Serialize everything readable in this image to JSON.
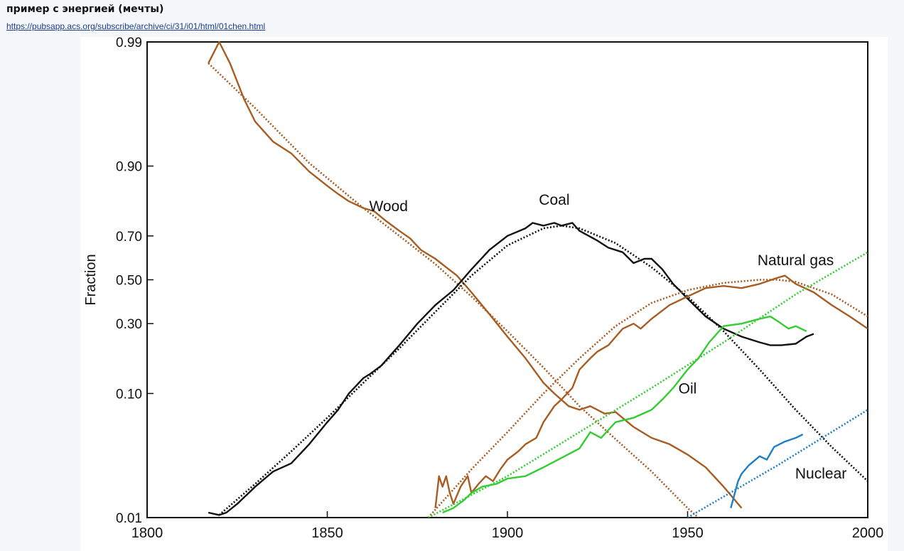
{
  "page": {
    "title": "пример с энергией (мечты)",
    "link": "https://pubsapp.acs.org/subscribe/archive/ci/31/i01/html/01chen.html"
  },
  "chart_data": {
    "type": "line",
    "title": "",
    "xlabel": "",
    "ylabel": "Fraction",
    "y_scale": "logit",
    "xlim": [
      1800,
      2000
    ],
    "ylim": [
      0.01,
      0.99
    ],
    "x_ticks": [
      1800,
      1850,
      1900,
      1950,
      2000
    ],
    "x_tick_labels": [
      "1800",
      "1850",
      "1900",
      "1950",
      "2000"
    ],
    "y_ticks": [
      0.01,
      0.1,
      0.3,
      0.5,
      0.7,
      0.9,
      0.99
    ],
    "y_tick_labels": [
      "0.01",
      "0.10",
      "0.30",
      "0.50",
      "0.70",
      "0.90",
      "0.99"
    ],
    "colors": {
      "Wood": "#a85c22",
      "Coal": "#111111",
      "Natural gas": "#a85c22",
      "Oil": "#33cc33",
      "Nuclear": "#1f7fc4"
    },
    "series": [
      {
        "name": "Wood",
        "actual": [
          [
            1817,
            0.985
          ],
          [
            1820,
            0.99
          ],
          [
            1823,
            0.985
          ],
          [
            1827,
            0.97
          ],
          [
            1830,
            0.955
          ],
          [
            1835,
            0.935
          ],
          [
            1840,
            0.92
          ],
          [
            1845,
            0.89
          ],
          [
            1850,
            0.86
          ],
          [
            1853,
            0.84
          ],
          [
            1856,
            0.82
          ],
          [
            1860,
            0.8
          ],
          [
            1863,
            0.79
          ],
          [
            1866,
            0.76
          ],
          [
            1870,
            0.72
          ],
          [
            1873,
            0.69
          ],
          [
            1876,
            0.64
          ],
          [
            1880,
            0.6
          ],
          [
            1883,
            0.56
          ],
          [
            1886,
            0.52
          ],
          [
            1890,
            0.44
          ],
          [
            1895,
            0.34
          ],
          [
            1900,
            0.25
          ],
          [
            1905,
            0.18
          ],
          [
            1910,
            0.12
          ],
          [
            1913,
            0.1
          ],
          [
            1917,
            0.08
          ],
          [
            1920,
            0.075
          ],
          [
            1923,
            0.08
          ],
          [
            1927,
            0.07
          ],
          [
            1930,
            0.072
          ],
          [
            1935,
            0.055
          ],
          [
            1940,
            0.045
          ],
          [
            1945,
            0.04
          ],
          [
            1950,
            0.033
          ],
          [
            1955,
            0.026
          ],
          [
            1960,
            0.018
          ],
          [
            1965,
            0.012
          ]
        ],
        "trend": [
          [
            1817,
            0.985
          ],
          [
            1830,
            0.965
          ],
          [
            1845,
            0.905
          ],
          [
            1860,
            0.8
          ],
          [
            1870,
            0.7
          ],
          [
            1880,
            0.575
          ],
          [
            1890,
            0.42
          ],
          [
            1900,
            0.27
          ],
          [
            1910,
            0.155
          ],
          [
            1920,
            0.08
          ],
          [
            1930,
            0.044
          ],
          [
            1940,
            0.024
          ],
          [
            1950,
            0.012
          ],
          [
            1953,
            0.01
          ]
        ]
      },
      {
        "name": "Coal",
        "actual": [
          [
            1817,
            0.011
          ],
          [
            1820,
            0.0105
          ],
          [
            1822,
            0.011
          ],
          [
            1825,
            0.013
          ],
          [
            1830,
            0.018
          ],
          [
            1835,
            0.024
          ],
          [
            1840,
            0.028
          ],
          [
            1845,
            0.04
          ],
          [
            1850,
            0.06
          ],
          [
            1853,
            0.075
          ],
          [
            1856,
            0.1
          ],
          [
            1860,
            0.13
          ],
          [
            1862,
            0.14
          ],
          [
            1865,
            0.16
          ],
          [
            1870,
            0.22
          ],
          [
            1875,
            0.3
          ],
          [
            1880,
            0.38
          ],
          [
            1885,
            0.45
          ],
          [
            1890,
            0.55
          ],
          [
            1895,
            0.64
          ],
          [
            1900,
            0.7
          ],
          [
            1905,
            0.73
          ],
          [
            1907,
            0.75
          ],
          [
            1910,
            0.74
          ],
          [
            1913,
            0.75
          ],
          [
            1915,
            0.74
          ],
          [
            1918,
            0.75
          ],
          [
            1920,
            0.72
          ],
          [
            1925,
            0.68
          ],
          [
            1928,
            0.65
          ],
          [
            1932,
            0.63
          ],
          [
            1935,
            0.58
          ],
          [
            1938,
            0.6
          ],
          [
            1940,
            0.6
          ],
          [
            1943,
            0.55
          ],
          [
            1946,
            0.48
          ],
          [
            1950,
            0.41
          ],
          [
            1955,
            0.33
          ],
          [
            1960,
            0.28
          ],
          [
            1965,
            0.25
          ],
          [
            1970,
            0.23
          ],
          [
            1973,
            0.22
          ],
          [
            1976,
            0.22
          ],
          [
            1980,
            0.225
          ],
          [
            1983,
            0.25
          ],
          [
            1985,
            0.26
          ]
        ],
        "trend": [
          [
            1820,
            0.0105
          ],
          [
            1830,
            0.019
          ],
          [
            1840,
            0.035
          ],
          [
            1850,
            0.065
          ],
          [
            1860,
            0.12
          ],
          [
            1870,
            0.21
          ],
          [
            1880,
            0.35
          ],
          [
            1890,
            0.52
          ],
          [
            1900,
            0.66
          ],
          [
            1910,
            0.73
          ],
          [
            1915,
            0.74
          ],
          [
            1920,
            0.73
          ],
          [
            1930,
            0.67
          ],
          [
            1940,
            0.56
          ],
          [
            1950,
            0.42
          ],
          [
            1960,
            0.27
          ],
          [
            1970,
            0.15
          ],
          [
            1980,
            0.075
          ],
          [
            1990,
            0.038
          ],
          [
            2000,
            0.02
          ]
        ]
      },
      {
        "name": "Natural gas",
        "actual": [
          [
            1880,
            0.012
          ],
          [
            1881,
            0.022
          ],
          [
            1882,
            0.018
          ],
          [
            1883,
            0.022
          ],
          [
            1884,
            0.016
          ],
          [
            1885,
            0.013
          ],
          [
            1887,
            0.018
          ],
          [
            1889,
            0.022
          ],
          [
            1890,
            0.016
          ],
          [
            1892,
            0.019
          ],
          [
            1894,
            0.022
          ],
          [
            1896,
            0.02
          ],
          [
            1898,
            0.025
          ],
          [
            1900,
            0.03
          ],
          [
            1903,
            0.035
          ],
          [
            1905,
            0.04
          ],
          [
            1908,
            0.045
          ],
          [
            1910,
            0.06
          ],
          [
            1913,
            0.08
          ],
          [
            1915,
            0.09
          ],
          [
            1918,
            0.11
          ],
          [
            1920,
            0.15
          ],
          [
            1923,
            0.18
          ],
          [
            1925,
            0.2
          ],
          [
            1928,
            0.22
          ],
          [
            1932,
            0.28
          ],
          [
            1935,
            0.3
          ],
          [
            1937,
            0.28
          ],
          [
            1940,
            0.32
          ],
          [
            1945,
            0.38
          ],
          [
            1950,
            0.42
          ],
          [
            1955,
            0.46
          ],
          [
            1960,
            0.47
          ],
          [
            1965,
            0.46
          ],
          [
            1970,
            0.48
          ],
          [
            1975,
            0.51
          ],
          [
            1977,
            0.52
          ],
          [
            1980,
            0.48
          ],
          [
            1985,
            0.44
          ],
          [
            1990,
            0.38
          ],
          [
            1995,
            0.33
          ],
          [
            2000,
            0.28
          ]
        ],
        "trend": [
          [
            1878,
            0.01
          ],
          [
            1890,
            0.025
          ],
          [
            1900,
            0.05
          ],
          [
            1910,
            0.1
          ],
          [
            1920,
            0.18
          ],
          [
            1930,
            0.29
          ],
          [
            1940,
            0.39
          ],
          [
            1950,
            0.45
          ],
          [
            1960,
            0.485
          ],
          [
            1970,
            0.5
          ],
          [
            1975,
            0.5
          ],
          [
            1980,
            0.49
          ],
          [
            1990,
            0.43
          ],
          [
            2000,
            0.33
          ]
        ]
      },
      {
        "name": "Oil",
        "actual": [
          [
            1882,
            0.011
          ],
          [
            1885,
            0.012
          ],
          [
            1888,
            0.014
          ],
          [
            1890,
            0.016
          ],
          [
            1893,
            0.018
          ],
          [
            1897,
            0.019
          ],
          [
            1900,
            0.021
          ],
          [
            1905,
            0.022
          ],
          [
            1910,
            0.026
          ],
          [
            1915,
            0.031
          ],
          [
            1920,
            0.037
          ],
          [
            1923,
            0.05
          ],
          [
            1926,
            0.045
          ],
          [
            1930,
            0.06
          ],
          [
            1935,
            0.065
          ],
          [
            1940,
            0.075
          ],
          [
            1943,
            0.09
          ],
          [
            1946,
            0.11
          ],
          [
            1950,
            0.15
          ],
          [
            1953,
            0.18
          ],
          [
            1956,
            0.23
          ],
          [
            1960,
            0.29
          ],
          [
            1965,
            0.3
          ],
          [
            1970,
            0.32
          ],
          [
            1973,
            0.33
          ],
          [
            1975,
            0.31
          ],
          [
            1978,
            0.28
          ],
          [
            1980,
            0.29
          ],
          [
            1983,
            0.27
          ]
        ],
        "trend": [
          [
            1878,
            0.01
          ],
          [
            1900,
            0.022
          ],
          [
            1920,
            0.05
          ],
          [
            1940,
            0.11
          ],
          [
            1960,
            0.23
          ],
          [
            1980,
            0.43
          ],
          [
            2000,
            0.63
          ]
        ]
      },
      {
        "name": "Nuclear",
        "actual": [
          [
            1962,
            0.012
          ],
          [
            1964,
            0.02
          ],
          [
            1965,
            0.023
          ],
          [
            1967,
            0.027
          ],
          [
            1970,
            0.032
          ],
          [
            1972,
            0.03
          ],
          [
            1974,
            0.038
          ],
          [
            1977,
            0.042
          ],
          [
            1980,
            0.045
          ],
          [
            1982,
            0.048
          ]
        ],
        "trend": [
          [
            1950,
            0.01
          ],
          [
            1975,
            0.027
          ],
          [
            2000,
            0.075
          ]
        ]
      }
    ],
    "annotations": [
      {
        "text": "Wood",
        "x": 1867,
        "y": 0.79
      },
      {
        "text": "Coal",
        "x": 1913,
        "y": 0.81
      },
      {
        "text": "Natural gas",
        "x": 1980,
        "y": 0.57
      },
      {
        "text": "Oil",
        "x": 1950,
        "y": 0.1
      },
      {
        "text": "Nuclear",
        "x": 1987,
        "y": 0.021
      }
    ]
  }
}
